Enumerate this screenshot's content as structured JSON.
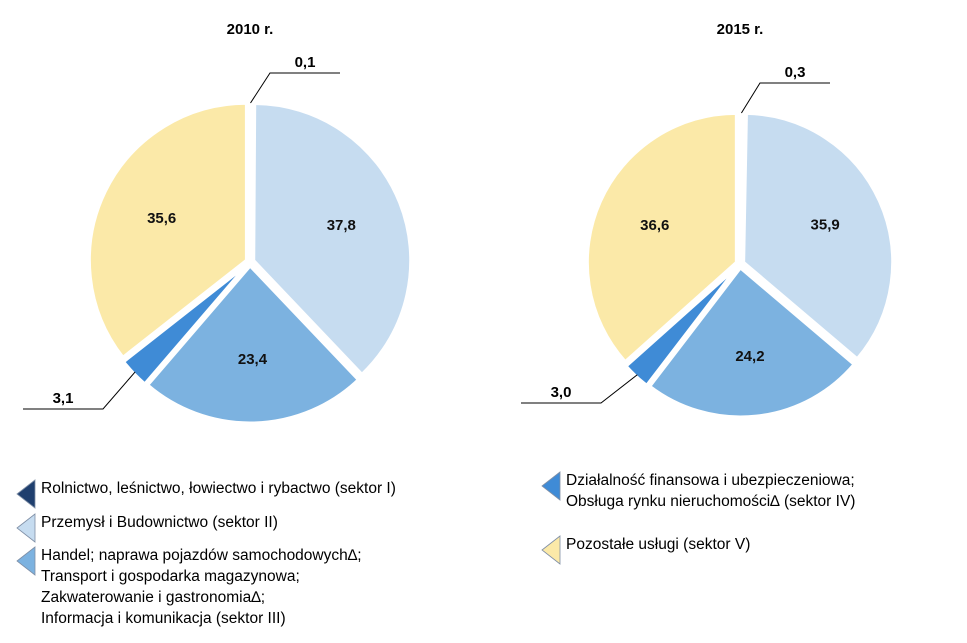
{
  "chart_data": [
    {
      "type": "pie",
      "title": "2010 r.",
      "categories": [
        "Rolnictwo, leśnictwo, łowiectwo i rybactwo (sektor I)",
        "Przemysł i Budownictwo (sektor II)",
        "Handel; naprawa pojazdów samochodowych∆;\nTransport i gospodarka magazynowa;\nZakwaterowanie i gastronomia∆;\nInformacja i komunikacja (sektor III)",
        "Działalność finansowa i ubezpieczeniowa;\nObsługa rynku nieruchomości∆ (sektor IV)",
        "Pozostałe usługi (sektor V)"
      ],
      "colors": [
        "#1f3f6e",
        "#c6dcf0",
        "#7cb2e0",
        "#3f8bd6",
        "#fbe9a8"
      ],
      "values": [
        0.1,
        37.8,
        23.4,
        3.1,
        35.6
      ],
      "value_labels": [
        "0,1",
        "37,8",
        "23,4",
        "3,1",
        "35,6"
      ]
    },
    {
      "type": "pie",
      "title": "2015 r.",
      "values": [
        0.3,
        35.9,
        24.2,
        3.0,
        36.6
      ],
      "value_labels": [
        "0,3",
        "35,9",
        "24,2",
        "3,0",
        "36,6"
      ]
    }
  ]
}
